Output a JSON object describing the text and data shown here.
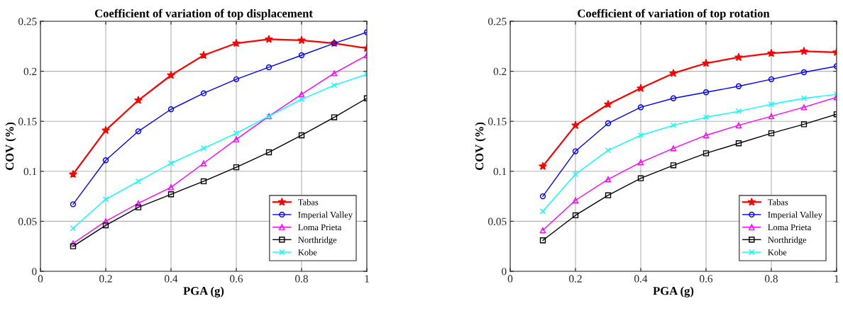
{
  "chart_data": [
    {
      "type": "line",
      "title": "Coefficient of variation of top displacement",
      "xlabel": "PGA (g)",
      "ylabel": "COV (%)",
      "x": [
        0.1,
        0.2,
        0.3,
        0.4,
        0.5,
        0.6,
        0.7,
        0.8,
        0.9,
        1.0
      ],
      "xlim": [
        0,
        1
      ],
      "xticks": [
        0,
        0.2,
        0.4,
        0.6,
        0.8,
        1
      ],
      "ylim": [
        0,
        0.25
      ],
      "yticks": [
        0,
        0.05,
        0.1,
        0.15,
        0.2,
        0.25
      ],
      "grid": true,
      "legend": "bottom right",
      "series": [
        {
          "name": "Tabas",
          "color": "#ff0000",
          "marker": "star",
          "values": [
            0.097,
            0.141,
            0.171,
            0.196,
            0.216,
            0.228,
            0.232,
            0.231,
            0.228,
            0.223
          ]
        },
        {
          "name": "Imperial Valley",
          "color": "#0000ff",
          "marker": "circle",
          "values": [
            0.067,
            0.111,
            0.14,
            0.162,
            0.178,
            0.192,
            0.204,
            0.216,
            0.228,
            0.239
          ]
        },
        {
          "name": "Loma Prieta",
          "color": "#ff00ff",
          "marker": "triangle",
          "values": [
            0.028,
            0.05,
            0.068,
            0.084,
            0.108,
            0.132,
            0.155,
            0.177,
            0.198,
            0.216
          ]
        },
        {
          "name": "Northridge",
          "color": "#000000",
          "marker": "square",
          "values": [
            0.025,
            0.046,
            0.064,
            0.077,
            0.09,
            0.104,
            0.119,
            0.136,
            0.154,
            0.173
          ]
        },
        {
          "name": "Kobe",
          "color": "#00ffff",
          "marker": "cross",
          "values": [
            0.043,
            0.072,
            0.09,
            0.108,
            0.123,
            0.138,
            0.155,
            0.172,
            0.186,
            0.197
          ]
        }
      ]
    },
    {
      "type": "line",
      "title": "Coefficient of variation of top rotation",
      "xlabel": "PGA (g)",
      "ylabel": "COV (%)",
      "x": [
        0.1,
        0.2,
        0.3,
        0.4,
        0.5,
        0.6,
        0.7,
        0.8,
        0.9,
        1.0
      ],
      "xlim": [
        0,
        1
      ],
      "xticks": [
        0,
        0.2,
        0.4,
        0.6,
        0.8,
        1
      ],
      "ylim": [
        0,
        0.25
      ],
      "yticks": [
        0,
        0.05,
        0.1,
        0.15,
        0.2,
        0.25
      ],
      "grid": true,
      "legend": "bottom right",
      "series": [
        {
          "name": "Tabas",
          "color": "#ff0000",
          "marker": "star",
          "values": [
            0.105,
            0.146,
            0.167,
            0.183,
            0.198,
            0.208,
            0.214,
            0.218,
            0.22,
            0.219
          ]
        },
        {
          "name": "Imperial Valley",
          "color": "#0000ff",
          "marker": "circle",
          "values": [
            0.075,
            0.12,
            0.148,
            0.164,
            0.173,
            0.179,
            0.185,
            0.192,
            0.199,
            0.205
          ]
        },
        {
          "name": "Loma Prieta",
          "color": "#ff00ff",
          "marker": "triangle",
          "values": [
            0.041,
            0.071,
            0.092,
            0.109,
            0.123,
            0.136,
            0.146,
            0.155,
            0.164,
            0.174
          ]
        },
        {
          "name": "Northridge",
          "color": "#000000",
          "marker": "square",
          "values": [
            0.031,
            0.056,
            0.076,
            0.093,
            0.106,
            0.118,
            0.128,
            0.138,
            0.147,
            0.157
          ]
        },
        {
          "name": "Kobe",
          "color": "#00ffff",
          "marker": "cross",
          "values": [
            0.06,
            0.097,
            0.121,
            0.136,
            0.146,
            0.154,
            0.16,
            0.167,
            0.173,
            0.177
          ]
        }
      ]
    }
  ]
}
